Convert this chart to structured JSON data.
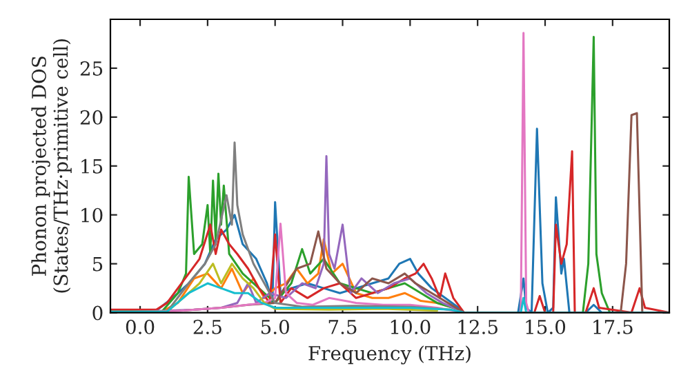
{
  "chart_data": {
    "type": "line",
    "xlabel": "Frequency (THz)",
    "ylabel": "Phonon projected DOS\n(States/THz·primitive cell)",
    "xlim": [
      -1.1,
      19.6
    ],
    "ylim": [
      0,
      30
    ],
    "xticks": [
      {
        "value": 0,
        "label": "0.0"
      },
      {
        "value": 2.5,
        "label": "2.5"
      },
      {
        "value": 5,
        "label": "5.0"
      },
      {
        "value": 7.5,
        "label": "7.5"
      },
      {
        "value": 10,
        "label": "10.0"
      },
      {
        "value": 12.5,
        "label": "12.5"
      },
      {
        "value": 15,
        "label": "15.0"
      },
      {
        "value": 17.5,
        "label": "17.5"
      }
    ],
    "yticks": [
      0,
      5,
      10,
      15,
      20,
      25
    ],
    "grid": false,
    "legend": false,
    "marker": "none",
    "line_style": "solid",
    "series": [
      {
        "color": "#1f77b4",
        "x": [
          -1.1,
          0.6,
          1.2,
          1.8,
          2.4,
          2.8,
          3.2,
          3.5,
          3.8,
          4.3,
          4.7,
          4.9,
          5.0,
          5.2,
          5.6,
          6.2,
          6.8,
          7.4,
          8.0,
          8.6,
          9.2,
          9.6,
          10.0,
          10.3,
          10.8,
          11.3,
          11.8,
          12.0,
          14.0,
          14.2,
          14.3,
          14.5,
          14.7,
          14.9,
          15.1,
          15.3,
          15.4,
          15.6,
          15.7,
          15.9,
          16.5,
          16.8,
          17.1,
          19.6
        ],
        "values": [
          0.2,
          0.2,
          1.5,
          3.0,
          5.0,
          7.5,
          8.5,
          10.0,
          7.0,
          5.5,
          3.0,
          1.0,
          11.3,
          2.0,
          2.5,
          3.0,
          2.5,
          2.0,
          2.5,
          3.0,
          3.5,
          5.0,
          5.5,
          4.0,
          2.5,
          1.5,
          0.5,
          0,
          0,
          3.5,
          0.5,
          0,
          18.8,
          3.0,
          0,
          0.5,
          11.8,
          4.0,
          5.5,
          0,
          0,
          0.8,
          0,
          0
        ]
      },
      {
        "color": "#ff7f0e",
        "x": [
          -1.1,
          0.8,
          1.4,
          2.0,
          2.5,
          3.0,
          3.4,
          3.8,
          4.2,
          4.6,
          5.0,
          5.4,
          5.8,
          6.2,
          6.6,
          6.8,
          7.1,
          7.5,
          8.0,
          8.6,
          9.2,
          9.8,
          10.4,
          11.0,
          11.6,
          11.9
        ],
        "values": [
          0.1,
          0.1,
          1.0,
          3.5,
          4.0,
          2.5,
          4.5,
          2.0,
          3.5,
          1.5,
          2.5,
          3.0,
          4.5,
          3.0,
          4.0,
          7.5,
          4.0,
          5.0,
          2.0,
          1.5,
          1.5,
          2.0,
          1.2,
          1.0,
          0.5,
          0.2
        ]
      },
      {
        "color": "#2ca02c",
        "x": [
          -1.1,
          0.8,
          1.4,
          1.7,
          1.8,
          2.0,
          2.3,
          2.5,
          2.6,
          2.7,
          2.8,
          2.9,
          3.0,
          3.1,
          3.3,
          3.8,
          4.4,
          5.0,
          5.6,
          6.0,
          6.3,
          6.8,
          7.4,
          8.0,
          8.6,
          9.2,
          9.8,
          10.4,
          11.0,
          11.6,
          12.0,
          16.4,
          16.6,
          16.8,
          16.9,
          17.1,
          17.4,
          19.6
        ],
        "values": [
          0.1,
          0.1,
          2.0,
          4.0,
          13.9,
          6.0,
          7.0,
          11.0,
          6.0,
          13.5,
          7.5,
          14.2,
          9.0,
          13.0,
          6.0,
          4.0,
          2.5,
          1.0,
          3.0,
          6.5,
          4.0,
          5.5,
          3.0,
          2.5,
          2.0,
          2.5,
          3.0,
          2.0,
          1.0,
          0.5,
          0,
          0,
          5.0,
          28.2,
          6.0,
          2.0,
          0,
          0
        ]
      },
      {
        "color": "#d62728",
        "x": [
          -1.1,
          0.6,
          1.0,
          1.4,
          1.8,
          2.2,
          2.6,
          2.8,
          3.0,
          3.3,
          3.6,
          4.0,
          4.4,
          4.8,
          5.0,
          5.2,
          5.6,
          6.2,
          6.8,
          7.4,
          8.0,
          8.6,
          9.2,
          9.8,
          10.2,
          10.5,
          10.8,
          11.1,
          11.3,
          11.6,
          12.0,
          14.6,
          14.8,
          15.0,
          15.3,
          15.4,
          15.6,
          15.8,
          16.0,
          16.1,
          16.5,
          16.8,
          17.0,
          18.2,
          18.5,
          18.7,
          19.6
        ],
        "values": [
          0.3,
          0.3,
          1.0,
          2.5,
          4.0,
          5.5,
          9.0,
          6.0,
          8.5,
          7.0,
          6.0,
          4.5,
          2.5,
          1.0,
          8.0,
          1.0,
          2.5,
          1.5,
          2.5,
          3.0,
          1.5,
          2.0,
          2.5,
          3.5,
          4.0,
          5.0,
          3.5,
          1.5,
          4.0,
          1.5,
          0,
          0,
          1.7,
          0,
          0,
          9.0,
          5.0,
          7.0,
          16.5,
          0,
          0,
          2.5,
          0.5,
          0,
          2.5,
          0.5,
          0
        ]
      },
      {
        "color": "#9467bd",
        "x": [
          -1.1,
          2.0,
          3.0,
          3.6,
          4.0,
          4.3,
          4.8,
          5.4,
          6.0,
          6.5,
          6.8,
          6.9,
          7.0,
          7.2,
          7.5,
          7.8,
          8.2,
          8.8,
          9.4,
          10.0,
          10.6,
          11.2,
          12.0,
          19.6
        ],
        "values": [
          0,
          0.3,
          0.5,
          1.0,
          3.0,
          1.0,
          2.0,
          1.5,
          3.0,
          2.5,
          5.0,
          16.0,
          6.0,
          4.5,
          9.0,
          2.0,
          3.5,
          2.0,
          3.0,
          3.5,
          2.0,
          1.0,
          0,
          0
        ]
      },
      {
        "color": "#8c564b",
        "x": [
          -1.1,
          1.5,
          3.0,
          4.0,
          5.0,
          5.8,
          6.3,
          6.6,
          6.9,
          7.4,
          8.0,
          8.6,
          9.2,
          9.8,
          10.2,
          10.8,
          11.4,
          12.0,
          17.8,
          18.0,
          18.2,
          18.4,
          18.6,
          19.6
        ],
        "values": [
          0,
          0.2,
          0.5,
          0.8,
          1.0,
          4.5,
          5.0,
          8.3,
          4.5,
          3.0,
          2.0,
          3.5,
          3.0,
          4.0,
          3.0,
          2.0,
          1.0,
          0,
          0,
          5.0,
          20.2,
          20.4,
          0,
          0
        ]
      },
      {
        "color": "#e377c2",
        "x": [
          -1.1,
          1.5,
          3.0,
          4.6,
          5.0,
          5.2,
          5.4,
          5.8,
          6.4,
          7.0,
          8.0,
          9.0,
          10.0,
          11.0,
          12.0,
          14.1,
          14.2,
          14.3,
          14.4,
          19.6
        ],
        "values": [
          0,
          0.2,
          0.5,
          1.0,
          1.5,
          9.1,
          2.0,
          1.0,
          0.8,
          1.5,
          1.0,
          0.8,
          0.8,
          0.5,
          0,
          0,
          28.6,
          1.0,
          0,
          0
        ]
      },
      {
        "color": "#7f7f7f",
        "x": [
          -1.1,
          1.0,
          1.8,
          2.4,
          2.8,
          3.2,
          3.4,
          3.5,
          3.6,
          3.8,
          4.2,
          4.6,
          5.0,
          6.0,
          8.0,
          10.0,
          11.5
        ],
        "values": [
          0.1,
          0.1,
          3.0,
          5.0,
          7.0,
          12.0,
          9.0,
          17.4,
          11.0,
          8.0,
          5.0,
          3.0,
          1.0,
          0.6,
          0.7,
          0.6,
          0.3
        ]
      },
      {
        "color": "#bcbd22",
        "x": [
          -1.1,
          1.0,
          1.8,
          2.2,
          2.7,
          3.0,
          3.4,
          3.8,
          4.2,
          4.6,
          5.0,
          7.0,
          9.0,
          11.0
        ],
        "values": [
          0.1,
          0.1,
          2.0,
          3.0,
          5.0,
          3.0,
          5.0,
          3.5,
          2.5,
          1.0,
          0.4,
          0.3,
          0.4,
          0.2
        ]
      },
      {
        "color": "#17becf",
        "x": [
          -1.1,
          1.0,
          1.8,
          2.5,
          3.0,
          3.5,
          4.0,
          4.5,
          5.0,
          6.0,
          8.0,
          10.0,
          11.5,
          12.0,
          14.1,
          14.2,
          14.3,
          19.6
        ],
        "values": [
          0.1,
          0.1,
          2.0,
          3.0,
          2.5,
          2.0,
          2.0,
          1.0,
          0.5,
          0.5,
          0.5,
          0.5,
          0.3,
          0,
          0,
          1.5,
          0,
          0
        ]
      }
    ]
  }
}
